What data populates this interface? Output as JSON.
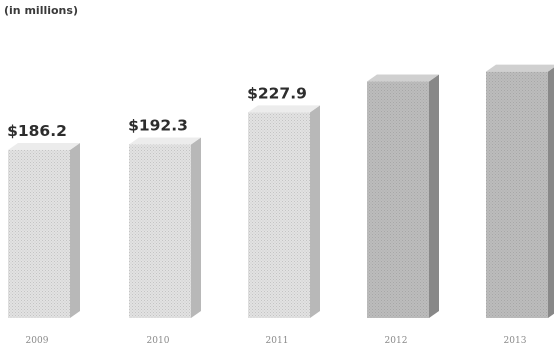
{
  "chart_data": {
    "type": "bar",
    "unit_label": "(in millions)",
    "categories": [
      "2009",
      "2010",
      "2011",
      "2012",
      "2013"
    ],
    "values": [
      186.2,
      192.3,
      227.9,
      262,
      273
    ],
    "labeled_values": [
      "$186.2",
      "$192.3",
      "$227.9"
    ],
    "colors": {
      "bar_face_light": "#e2e2e2",
      "bar_face_dark": "#bcbcbc",
      "bar_side_light": "#b8b8b8",
      "bar_side_dark": "#888888",
      "text": "#2d2d2d"
    }
  }
}
